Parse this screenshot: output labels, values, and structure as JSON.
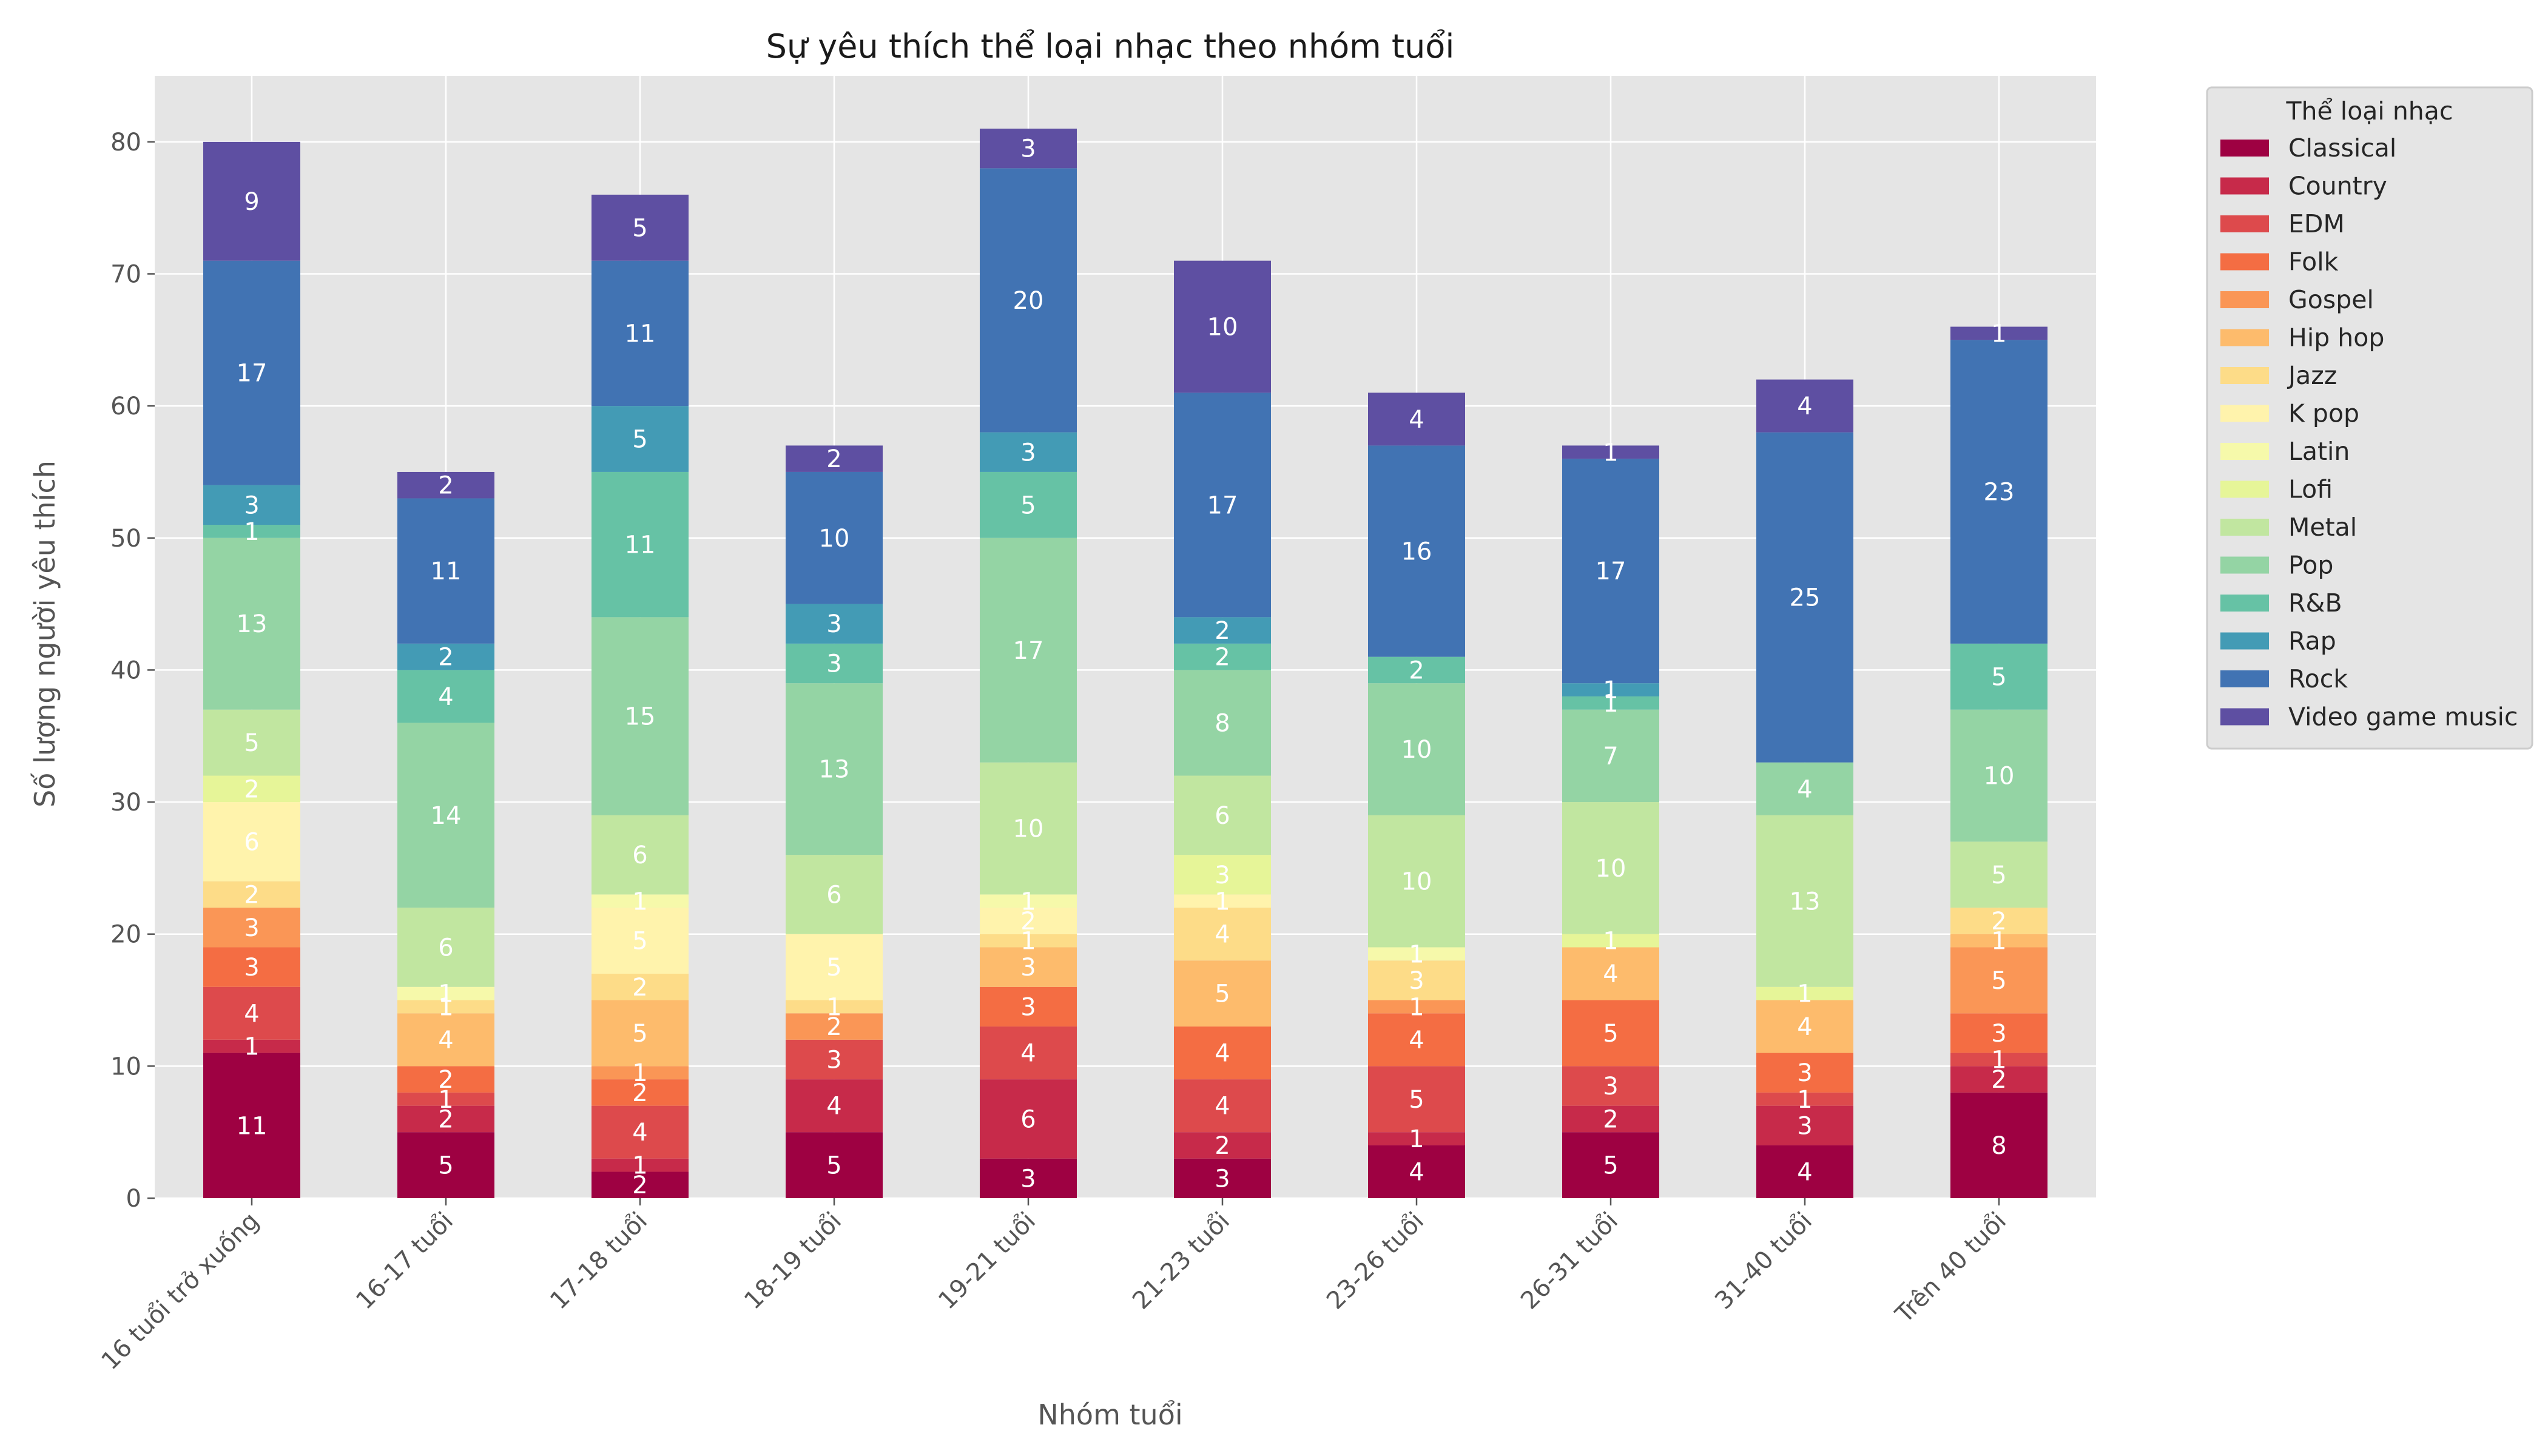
{
  "chart_data": {
    "type": "bar",
    "stacked": true,
    "title": "Sự yêu thích thể loại nhạc theo nhóm tuổi",
    "xlabel": "Nhóm tuổi",
    "ylabel": "Số lượng người yêu thích",
    "ylim": [
      0,
      85
    ],
    "yticks": [
      0,
      10,
      20,
      30,
      40,
      50,
      60,
      70,
      80
    ],
    "grid": true,
    "legend_title": "Thể loại nhạc",
    "legend_position": "outside-right",
    "categories": [
      "16 tuổi trở xuống",
      "16-17 tuổi",
      "17-18 tuổi",
      "18-19 tuổi",
      "19-21 tuổi",
      "21-23 tuổi",
      "23-26 tuổi",
      "26-31 tuổi",
      "31-40 tuổi",
      "Trên 40 tuổi"
    ],
    "series": [
      {
        "name": "Classical",
        "color": "#9e0142",
        "values": [
          11,
          5,
          2,
          5,
          3,
          3,
          4,
          5,
          4,
          8
        ]
      },
      {
        "name": "Country",
        "color": "#c72a4a",
        "values": [
          1,
          2,
          1,
          4,
          6,
          2,
          1,
          2,
          3,
          2
        ]
      },
      {
        "name": "EDM",
        "color": "#dd4a4c",
        "values": [
          4,
          1,
          4,
          3,
          4,
          4,
          5,
          3,
          1,
          1
        ]
      },
      {
        "name": "Folk",
        "color": "#f46d43",
        "values": [
          3,
          2,
          2,
          0,
          3,
          4,
          4,
          5,
          3,
          3
        ]
      },
      {
        "name": "Gospel",
        "color": "#fa9656",
        "values": [
          3,
          0,
          1,
          2,
          0,
          0,
          1,
          0,
          0,
          5
        ]
      },
      {
        "name": "Hip hop",
        "color": "#fdbb6c",
        "values": [
          0,
          4,
          5,
          0,
          3,
          5,
          0,
          4,
          4,
          1
        ]
      },
      {
        "name": "Jazz",
        "color": "#fddc88",
        "values": [
          2,
          1,
          2,
          1,
          1,
          4,
          3,
          0,
          0,
          2
        ]
      },
      {
        "name": "K pop",
        "color": "#fff3ac",
        "values": [
          6,
          0,
          5,
          5,
          2,
          1,
          0,
          0,
          0,
          0
        ]
      },
      {
        "name": "Latin",
        "color": "#f6f9aa",
        "values": [
          0,
          1,
          1,
          0,
          1,
          0,
          1,
          0,
          0,
          0
        ]
      },
      {
        "name": "Lofi",
        "color": "#e6f598",
        "values": [
          2,
          0,
          0,
          0,
          0,
          3,
          0,
          1,
          1,
          0
        ]
      },
      {
        "name": "Metal",
        "color": "#c1e6a0",
        "values": [
          5,
          6,
          6,
          6,
          10,
          6,
          10,
          10,
          13,
          5
        ]
      },
      {
        "name": "Pop",
        "color": "#94d4a4",
        "values": [
          13,
          14,
          15,
          13,
          17,
          8,
          10,
          7,
          4,
          10
        ]
      },
      {
        "name": "R&B",
        "color": "#66c2a5",
        "values": [
          1,
          4,
          11,
          3,
          5,
          2,
          2,
          1,
          0,
          5
        ]
      },
      {
        "name": "Rap",
        "color": "#439bb5",
        "values": [
          3,
          2,
          5,
          3,
          3,
          2,
          0,
          1,
          0,
          0
        ]
      },
      {
        "name": "Rock",
        "color": "#4173b3",
        "values": [
          17,
          11,
          11,
          10,
          20,
          17,
          16,
          17,
          25,
          23
        ]
      },
      {
        "name": "Video game music",
        "color": "#5e4fa2",
        "values": [
          9,
          2,
          5,
          2,
          3,
          10,
          4,
          1,
          4,
          1
        ]
      }
    ]
  }
}
